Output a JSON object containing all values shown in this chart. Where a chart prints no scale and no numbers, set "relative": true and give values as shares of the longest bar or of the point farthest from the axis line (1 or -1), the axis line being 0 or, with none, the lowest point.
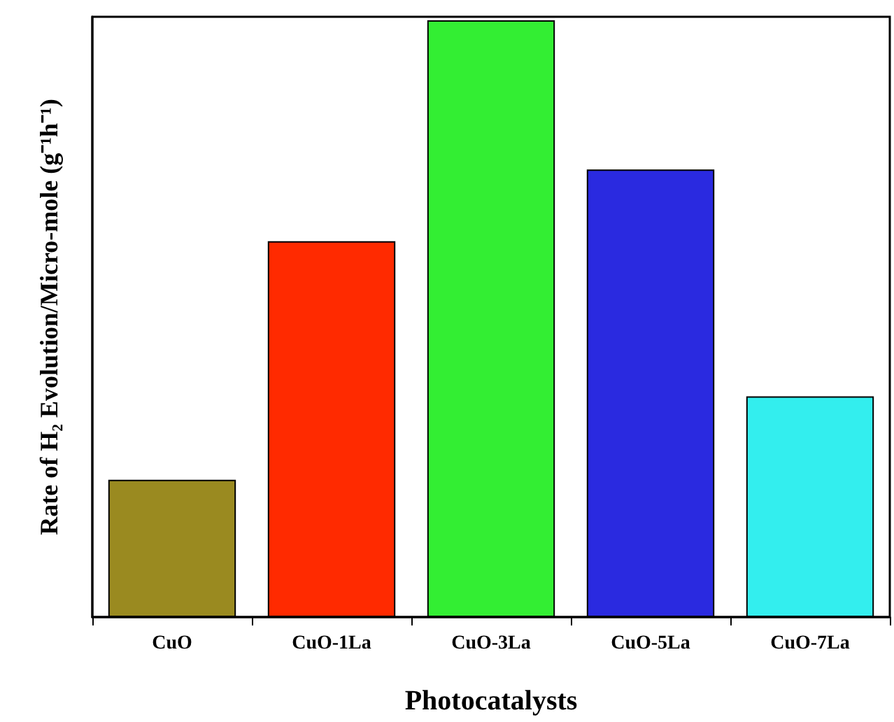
{
  "chart_data": {
    "type": "bar",
    "relative": true,
    "xlabel": "Photocatalysts",
    "ylabel": "Rate of H₂ Evolution/Micro-mole (g⁻¹h⁻¹)",
    "categories": [
      "CuO",
      "CuO-1La",
      "CuO-3La",
      "CuO-5La",
      "CuO-7La"
    ],
    "values": [
      0.23,
      0.63,
      1,
      0.75,
      0.37
    ],
    "colors": [
      "#9a8a20",
      "#ff2a00",
      "#33ee33",
      "#2a2ae0",
      "#33eeee"
    ],
    "grid": false
  }
}
